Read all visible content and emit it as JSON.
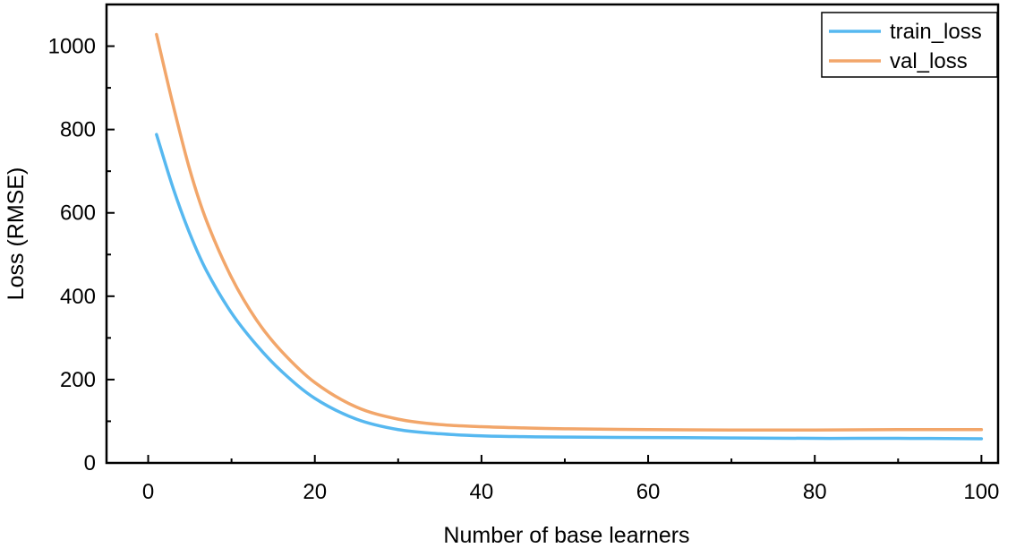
{
  "chart_data": {
    "type": "line",
    "xlabel": "Number of base learners",
    "ylabel": "Loss (RMSE)",
    "xlim": [
      -5,
      102
    ],
    "ylim": [
      0,
      1100
    ],
    "x_ticks": [
      0,
      20,
      40,
      60,
      80,
      100
    ],
    "y_ticks": [
      0,
      200,
      400,
      600,
      800,
      1000
    ],
    "grid": false,
    "legend": "top-right",
    "series": [
      {
        "name": "train_loss",
        "color": "#56b8f0",
        "x": [
          1,
          3,
          5,
          7,
          10,
          13,
          16,
          20,
          25,
          30,
          35,
          40,
          45,
          50,
          60,
          70,
          80,
          90,
          100
        ],
        "values": [
          788,
          659,
          550,
          461,
          360,
          283,
          220,
          155,
          105,
          80,
          70,
          65,
          63,
          62,
          61,
          60,
          59,
          59,
          58
        ]
      },
      {
        "name": "val_loss",
        "color": "#f2a66a",
        "x": [
          1,
          3,
          5,
          7,
          10,
          13,
          16,
          20,
          25,
          30,
          35,
          40,
          45,
          50,
          60,
          70,
          80,
          90,
          100
        ],
        "values": [
          1028,
          858,
          703,
          581,
          445,
          343,
          268,
          193,
          134,
          105,
          92,
          87,
          84,
          82,
          80,
          79,
          79,
          80,
          80
        ]
      }
    ]
  }
}
